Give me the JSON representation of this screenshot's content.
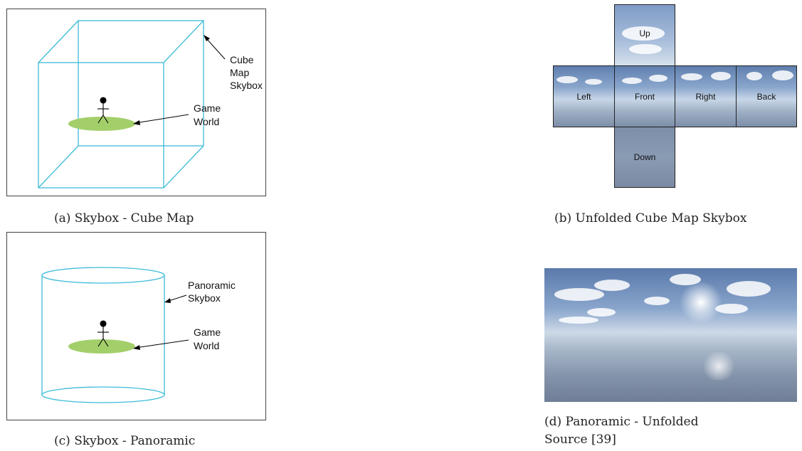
{
  "panels": {
    "a": {
      "caption": "(a) Skybox - Cube Map",
      "label_skybox_lines": [
        "Cube",
        "Map",
        "Skybox"
      ],
      "label_world_lines": [
        "Game",
        "World"
      ]
    },
    "b": {
      "caption": "(b) Unfolded Cube Map Skybox",
      "faces": {
        "up": "Up",
        "left": "Left",
        "front": "Front",
        "right": "Right",
        "back": "Back",
        "down": "Down"
      }
    },
    "c": {
      "caption": "(c) Skybox - Panoramic",
      "label_skybox_lines": [
        "Panoramic",
        "Skybox"
      ],
      "label_world_lines": [
        "Game",
        "World"
      ]
    },
    "d": {
      "caption_line1": "(d) Panoramic - Unfolded",
      "caption_line2": "Source [39]"
    }
  },
  "colors": {
    "wireframe": "#3dbbd8",
    "ground": "#a3cf6a",
    "sky_top": "#5f7fae",
    "sky_horizon": "#c7d6e6"
  }
}
